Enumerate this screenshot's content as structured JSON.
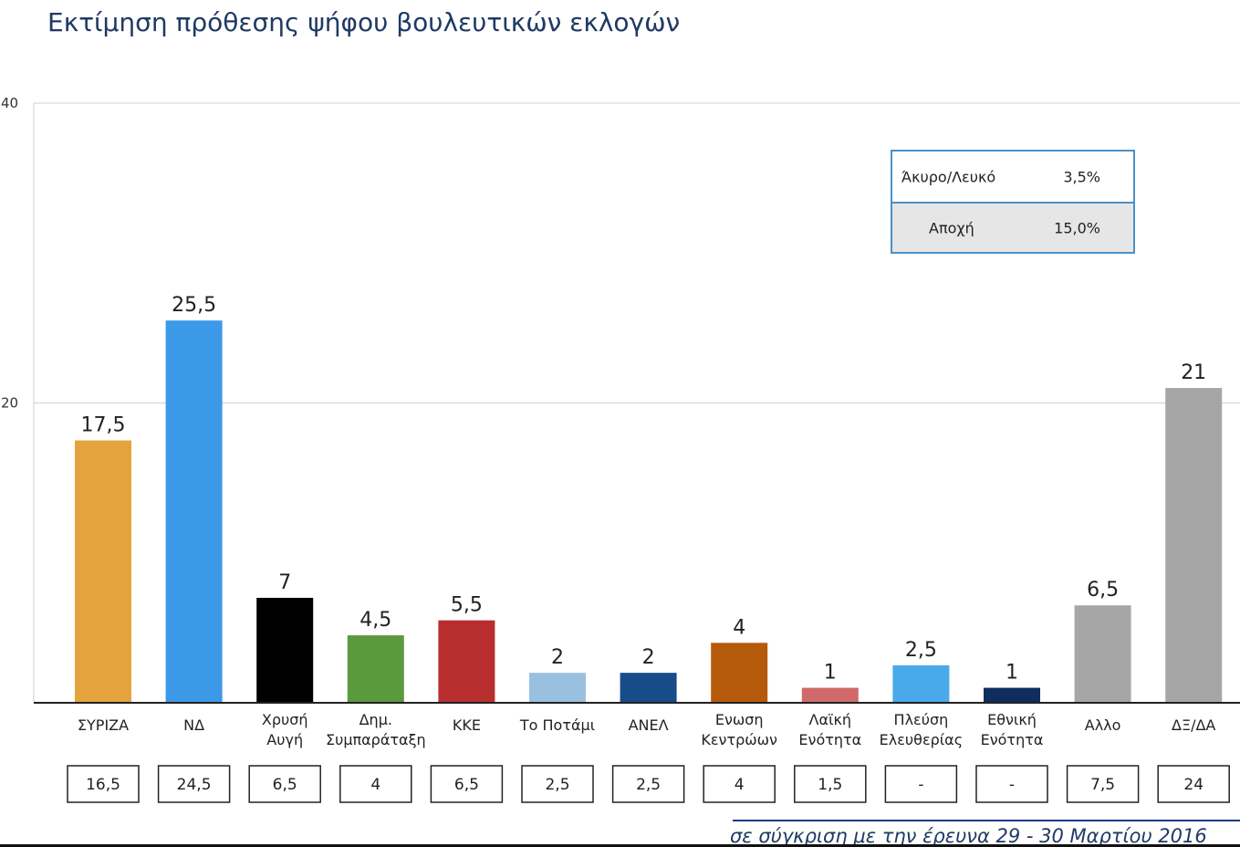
{
  "title": "Εκτίμηση πρόθεσης ψήφου βουλευτικών εκλογών",
  "chart_data": {
    "type": "bar",
    "title": "Εκτίμηση πρόθεσης ψήφου βουλευτικών εκλογών",
    "ylim": [
      0,
      40
    ],
    "yticks": [
      "20",
      "40"
    ],
    "grid": true,
    "categories": [
      [
        "ΣΥΡΙΖΑ"
      ],
      [
        "ΝΔ"
      ],
      [
        "Χρυσή",
        "Αυγή"
      ],
      [
        "Δημ.",
        "Συμπαράταξη"
      ],
      [
        "ΚΚΕ"
      ],
      [
        "Το Ποτάμι"
      ],
      [
        "ΑΝΕΛ"
      ],
      [
        "Ενωση",
        "Κεντρώων"
      ],
      [
        "Λαϊκή",
        "Ενότητα"
      ],
      [
        "Πλεύση",
        "Ελευθερίας"
      ],
      [
        "Εθνική",
        "Ενότητα"
      ],
      [
        "Αλλο"
      ],
      [
        "ΔΞ/ΔΑ"
      ]
    ],
    "values": [
      17.5,
      25.5,
      7,
      4.5,
      5.5,
      2,
      2,
      4,
      1,
      2.5,
      1,
      6.5,
      21
    ],
    "value_labels": [
      "17,5",
      "25,5",
      "7",
      "4,5",
      "5,5",
      "2",
      "2",
      "4",
      "1",
      "2,5",
      "1",
      "6,5",
      "21"
    ],
    "colors": [
      "#e5a33d",
      "#3b99e8",
      "#000000",
      "#5a9a3e",
      "#b82e2e",
      "#9ac0e0",
      "#174b8a",
      "#b55a0b",
      "#d06a6a",
      "#4aa9e8",
      "#0f2d5e",
      "#a6a6a6",
      "#a6a6a6"
    ],
    "comparison_labels": [
      "16,5",
      "24,5",
      "6,5",
      "4",
      "6,5",
      "2,5",
      "2,5",
      "4",
      "1,5",
      "-",
      "-",
      "7,5",
      "24"
    ]
  },
  "info_box": {
    "rows": [
      {
        "label": "Άκυρο/Λευκό",
        "value": "3,5%"
      },
      {
        "label": "Αποχή",
        "value": "15,0%"
      }
    ]
  },
  "footnote": "σε σύγκριση με την έρευνα 29 - 30 Μαρτίου 2016"
}
